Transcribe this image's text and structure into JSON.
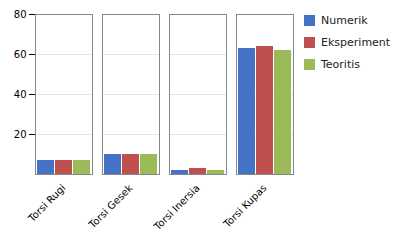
{
  "chart_data": {
    "type": "bar",
    "categories": [
      "Torsi Rugi",
      "Torsi Gesek",
      "Torsi Inersia",
      "Torsi Kupas"
    ],
    "series": [
      {
        "name": "Numerik",
        "color": "#4472C4",
        "values": [
          7,
          10,
          2,
          63
        ]
      },
      {
        "name": "Eksperiment",
        "color": "#C0504D",
        "values": [
          7,
          10,
          3,
          64
        ]
      },
      {
        "name": "Teoritis",
        "color": "#9BBB59",
        "values": [
          7,
          10,
          2,
          62
        ]
      }
    ],
    "ylim": [
      0,
      80
    ],
    "yticks": [
      20,
      40,
      60,
      80
    ],
    "grid": true,
    "legend": "right"
  }
}
